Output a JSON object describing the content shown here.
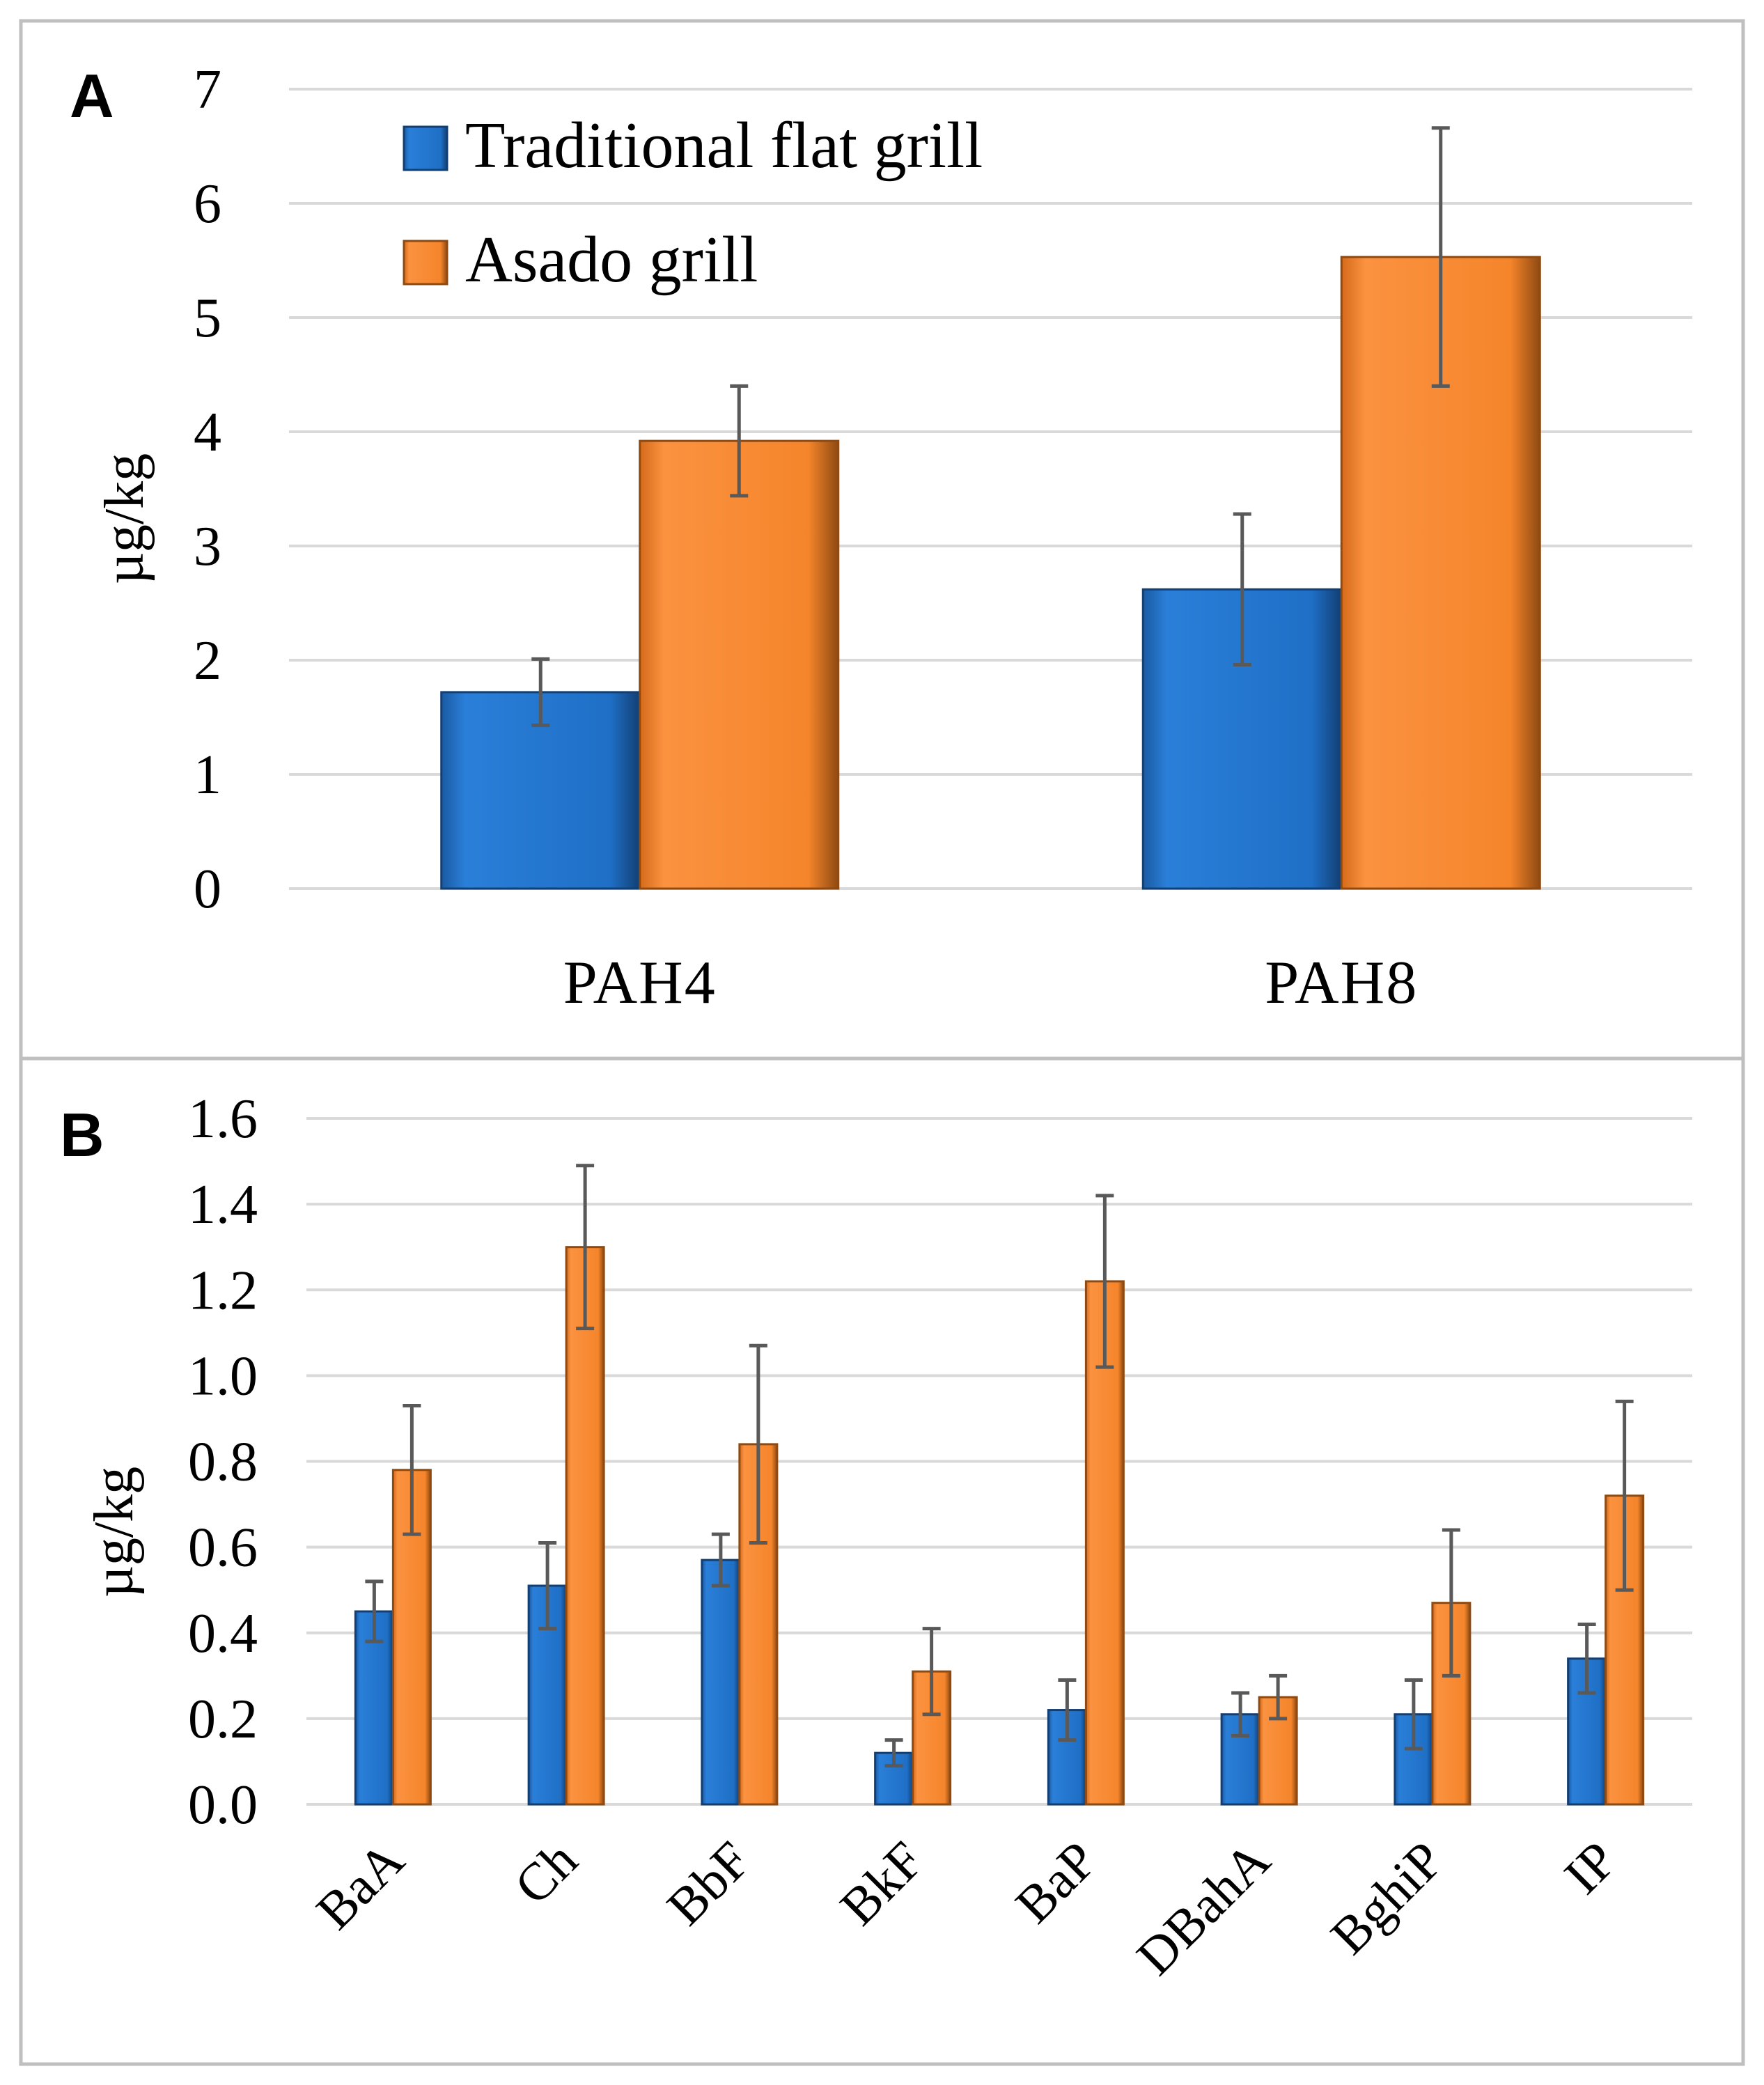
{
  "series_colors": {
    "Traditional flat grill": "#1f6fc6",
    "Asado grill": "#f5852b"
  },
  "chart_data": [
    {
      "panel": "A",
      "type": "bar",
      "title": "",
      "xlabel": "",
      "ylabel": "µg/kg",
      "ylim": [
        0,
        7
      ],
      "yticks": [
        "0",
        "1",
        "2",
        "3",
        "4",
        "5",
        "6",
        "7"
      ],
      "grid": true,
      "legend": "top-left",
      "categories": [
        "PAH4",
        "PAH8"
      ],
      "series": [
        {
          "name": "Traditional flat grill",
          "values": [
            1.72,
            2.62
          ],
          "error": [
            0.29,
            0.66
          ]
        },
        {
          "name": "Asado grill",
          "values": [
            3.92,
            5.53
          ],
          "error": [
            0.48,
            1.13
          ]
        }
      ]
    },
    {
      "panel": "B",
      "type": "bar",
      "title": "",
      "xlabel": "",
      "ylabel": "µg/kg",
      "ylim": [
        0,
        1.6
      ],
      "yticks": [
        "0.0",
        "0.2",
        "0.4",
        "0.6",
        "0.8",
        "1.0",
        "1.2",
        "1.4",
        "1.6"
      ],
      "grid": true,
      "legend": "none",
      "categories": [
        "BaA",
        "Ch",
        "BbF",
        "BkF",
        "BaP",
        "DBahA",
        "BghiP",
        "IP"
      ],
      "series": [
        {
          "name": "Traditional flat grill",
          "values": [
            0.45,
            0.51,
            0.57,
            0.12,
            0.22,
            0.21,
            0.21,
            0.34
          ],
          "error": [
            0.07,
            0.1,
            0.06,
            0.03,
            0.07,
            0.05,
            0.08,
            0.08
          ]
        },
        {
          "name": "Asado grill",
          "values": [
            0.78,
            1.3,
            0.84,
            0.31,
            1.22,
            0.25,
            0.47,
            0.72
          ],
          "error": [
            0.15,
            0.19,
            0.23,
            0.1,
            0.2,
            0.05,
            0.17,
            0.22
          ]
        }
      ]
    }
  ]
}
